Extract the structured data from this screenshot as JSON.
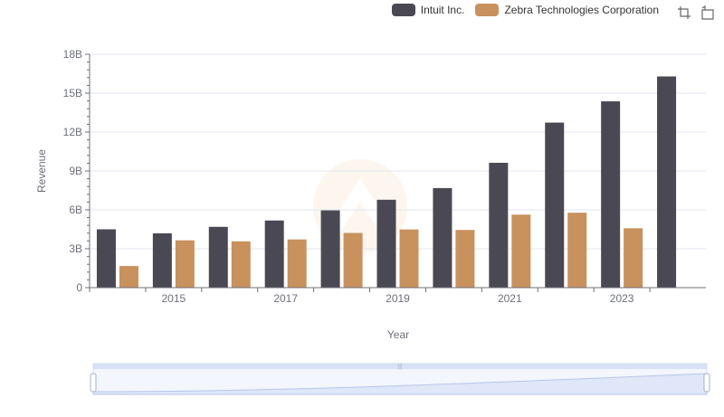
{
  "legend": [
    {
      "name": "Intuit Inc.",
      "color": "#4a4953"
    },
    {
      "name": "Zebra Technologies Corporation",
      "color": "#c8915e"
    }
  ],
  "toolbox": [
    {
      "icon": "zoom-icon"
    },
    {
      "icon": "restore-icon"
    }
  ],
  "chart_data": {
    "type": "bar",
    "categories": [
      "2014",
      "2015",
      "2016",
      "2017",
      "2018",
      "2019",
      "2020",
      "2021",
      "2022",
      "2023",
      "2024"
    ],
    "series": [
      {
        "name": "Intuit Inc.",
        "color": "#4a4953",
        "values": [
          4.5,
          4.19,
          4.69,
          5.18,
          5.96,
          6.78,
          7.68,
          9.63,
          12.73,
          14.37,
          16.29
        ]
      },
      {
        "name": "Zebra Technologies Corporation",
        "color": "#c8915e",
        "values": [
          1.67,
          3.65,
          3.57,
          3.72,
          4.22,
          4.49,
          4.45,
          5.63,
          5.78,
          4.58,
          null
        ]
      }
    ],
    "xlabel": "Year",
    "ylabel": "Revenue",
    "xtick_labels": [
      "2015",
      "2017",
      "2019",
      "2021",
      "2023"
    ],
    "ytick_labels": [
      "0",
      "3B",
      "6B",
      "9B",
      "12B",
      "15B",
      "18B"
    ],
    "ylim": [
      0,
      18
    ],
    "unit": "B",
    "legend_position": "top-right"
  }
}
